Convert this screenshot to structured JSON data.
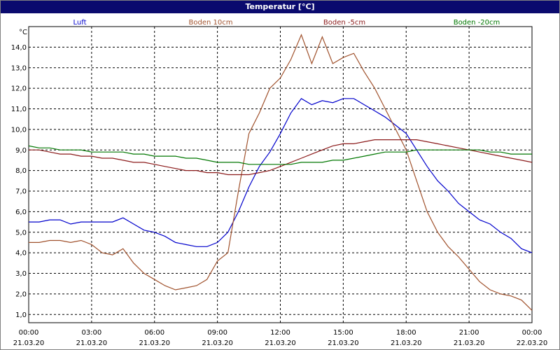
{
  "window": {
    "title": "Temperatur [°C]"
  },
  "chart_data": {
    "type": "line",
    "title": "Temperatur [°C]",
    "ylabel": "°C",
    "xlabel": "",
    "ylim": [
      0.6,
      15.0
    ],
    "xlim": [
      0,
      24
    ],
    "grid": true,
    "legend": "top",
    "yticks": [
      1,
      2,
      3,
      4,
      5,
      6,
      7,
      8,
      9,
      10,
      11,
      12,
      13,
      14
    ],
    "ytick_labels": [
      "1,0",
      "2,0",
      "3,0",
      "4,0",
      "5,0",
      "6,0",
      "7,0",
      "8,0",
      "9,0",
      "10,0",
      "11,0",
      "12,0",
      "13,0",
      "14,0"
    ],
    "xticks": [
      {
        "time": "00:00",
        "date": "21.03.20"
      },
      {
        "time": "03:00",
        "date": "21.03.20"
      },
      {
        "time": "06:00",
        "date": "21.03.20"
      },
      {
        "time": "09:00",
        "date": "21.03.20"
      },
      {
        "time": "12:00",
        "date": "21.03.20"
      },
      {
        "time": "15:00",
        "date": "21.03.20"
      },
      {
        "time": "18:00",
        "date": "21.03.20"
      },
      {
        "time": "21:00",
        "date": "21.03.20"
      },
      {
        "time": "00:00",
        "date": "22.03.20"
      }
    ],
    "series": [
      {
        "name": "Luft",
        "color": "#0000cc",
        "x": [
          0,
          0.5,
          1,
          1.5,
          2,
          2.5,
          3,
          3.5,
          4,
          4.5,
          5,
          5.5,
          6,
          6.5,
          7,
          7.5,
          8,
          8.5,
          9,
          9.5,
          10,
          10.5,
          11,
          11.5,
          12,
          12.5,
          13,
          13.5,
          14,
          14.5,
          15,
          15.5,
          16,
          16.5,
          17,
          17.5,
          18,
          18.5,
          19,
          19.5,
          20,
          20.5,
          21,
          21.5,
          22,
          22.5,
          23,
          23.5,
          24
        ],
        "values": [
          5.5,
          5.5,
          5.6,
          5.6,
          5.4,
          5.5,
          5.5,
          5.5,
          5.5,
          5.7,
          5.4,
          5.1,
          5.0,
          4.8,
          4.5,
          4.4,
          4.3,
          4.3,
          4.5,
          5.0,
          6.0,
          7.2,
          8.2,
          8.9,
          9.8,
          10.8,
          11.5,
          11.2,
          11.4,
          11.3,
          11.5,
          11.5,
          11.2,
          10.9,
          10.6,
          10.2,
          9.8,
          9.0,
          8.2,
          7.5,
          7.0,
          6.4,
          6.0,
          5.6,
          5.4,
          5.0,
          4.7,
          4.2,
          4.0
        ]
      },
      {
        "name": "Boden 10cm",
        "color": "#a0522d",
        "x": [
          0,
          0.5,
          1,
          1.5,
          2,
          2.5,
          3,
          3.5,
          4,
          4.5,
          5,
          5.5,
          6,
          6.5,
          7,
          7.5,
          8,
          8.5,
          9,
          9.5,
          10,
          10.5,
          11,
          11.5,
          12,
          12.5,
          13,
          13.5,
          14,
          14.5,
          15,
          15.5,
          16,
          16.5,
          17,
          17.5,
          18,
          18.5,
          19,
          19.5,
          20,
          20.5,
          21,
          21.5,
          22,
          22.5,
          23,
          23.5,
          24
        ],
        "values": [
          4.5,
          4.5,
          4.6,
          4.6,
          4.5,
          4.6,
          4.4,
          4.0,
          3.9,
          4.2,
          3.5,
          3.0,
          2.7,
          2.4,
          2.2,
          2.3,
          2.4,
          2.7,
          3.6,
          4.0,
          7.0,
          9.8,
          10.8,
          12.0,
          12.5,
          13.4,
          14.6,
          13.2,
          14.5,
          13.2,
          13.5,
          13.7,
          12.8,
          12.0,
          11.0,
          10.0,
          9.0,
          7.5,
          6.0,
          5.0,
          4.3,
          3.8,
          3.2,
          2.6,
          2.2,
          2.0,
          1.9,
          1.7,
          1.2
        ]
      },
      {
        "name": "Boden -5cm",
        "color": "#8b1a1a",
        "x": [
          0,
          0.5,
          1,
          1.5,
          2,
          2.5,
          3,
          3.5,
          4,
          4.5,
          5,
          5.5,
          6,
          6.5,
          7,
          7.5,
          8,
          8.5,
          9,
          9.5,
          10,
          10.5,
          11,
          11.5,
          12,
          12.5,
          13,
          13.5,
          14,
          14.5,
          15,
          15.5,
          16,
          16.5,
          17,
          17.5,
          18,
          18.5,
          19,
          19.5,
          20,
          20.5,
          21,
          21.5,
          22,
          22.5,
          23,
          23.5,
          24
        ],
        "values": [
          9.0,
          9.0,
          8.9,
          8.8,
          8.8,
          8.7,
          8.7,
          8.6,
          8.6,
          8.5,
          8.4,
          8.4,
          8.3,
          8.2,
          8.1,
          8.0,
          8.0,
          7.9,
          7.9,
          7.8,
          7.8,
          7.8,
          7.9,
          8.0,
          8.2,
          8.4,
          8.6,
          8.8,
          9.0,
          9.2,
          9.3,
          9.3,
          9.4,
          9.5,
          9.5,
          9.5,
          9.5,
          9.5,
          9.4,
          9.3,
          9.2,
          9.1,
          9.0,
          8.9,
          8.8,
          8.7,
          8.6,
          8.5,
          8.4
        ]
      },
      {
        "name": "Boden -20cm",
        "color": "#007700",
        "x": [
          0,
          0.5,
          1,
          1.5,
          2,
          2.5,
          3,
          3.5,
          4,
          4.5,
          5,
          5.5,
          6,
          6.5,
          7,
          7.5,
          8,
          8.5,
          9,
          9.5,
          10,
          10.5,
          11,
          11.5,
          12,
          12.5,
          13,
          13.5,
          14,
          14.5,
          15,
          15.5,
          16,
          16.5,
          17,
          17.5,
          18,
          18.5,
          19,
          19.5,
          20,
          20.5,
          21,
          21.5,
          22,
          22.5,
          23,
          23.5,
          24
        ],
        "values": [
          9.2,
          9.1,
          9.1,
          9.0,
          9.0,
          9.0,
          8.9,
          8.9,
          8.9,
          8.9,
          8.8,
          8.8,
          8.7,
          8.7,
          8.7,
          8.6,
          8.6,
          8.5,
          8.4,
          8.4,
          8.4,
          8.3,
          8.3,
          8.3,
          8.3,
          8.3,
          8.4,
          8.4,
          8.4,
          8.5,
          8.5,
          8.6,
          8.7,
          8.8,
          8.9,
          8.9,
          8.9,
          9.0,
          9.0,
          9.0,
          9.0,
          9.0,
          9.0,
          9.0,
          8.9,
          8.9,
          8.8,
          8.8,
          8.8
        ]
      }
    ]
  }
}
